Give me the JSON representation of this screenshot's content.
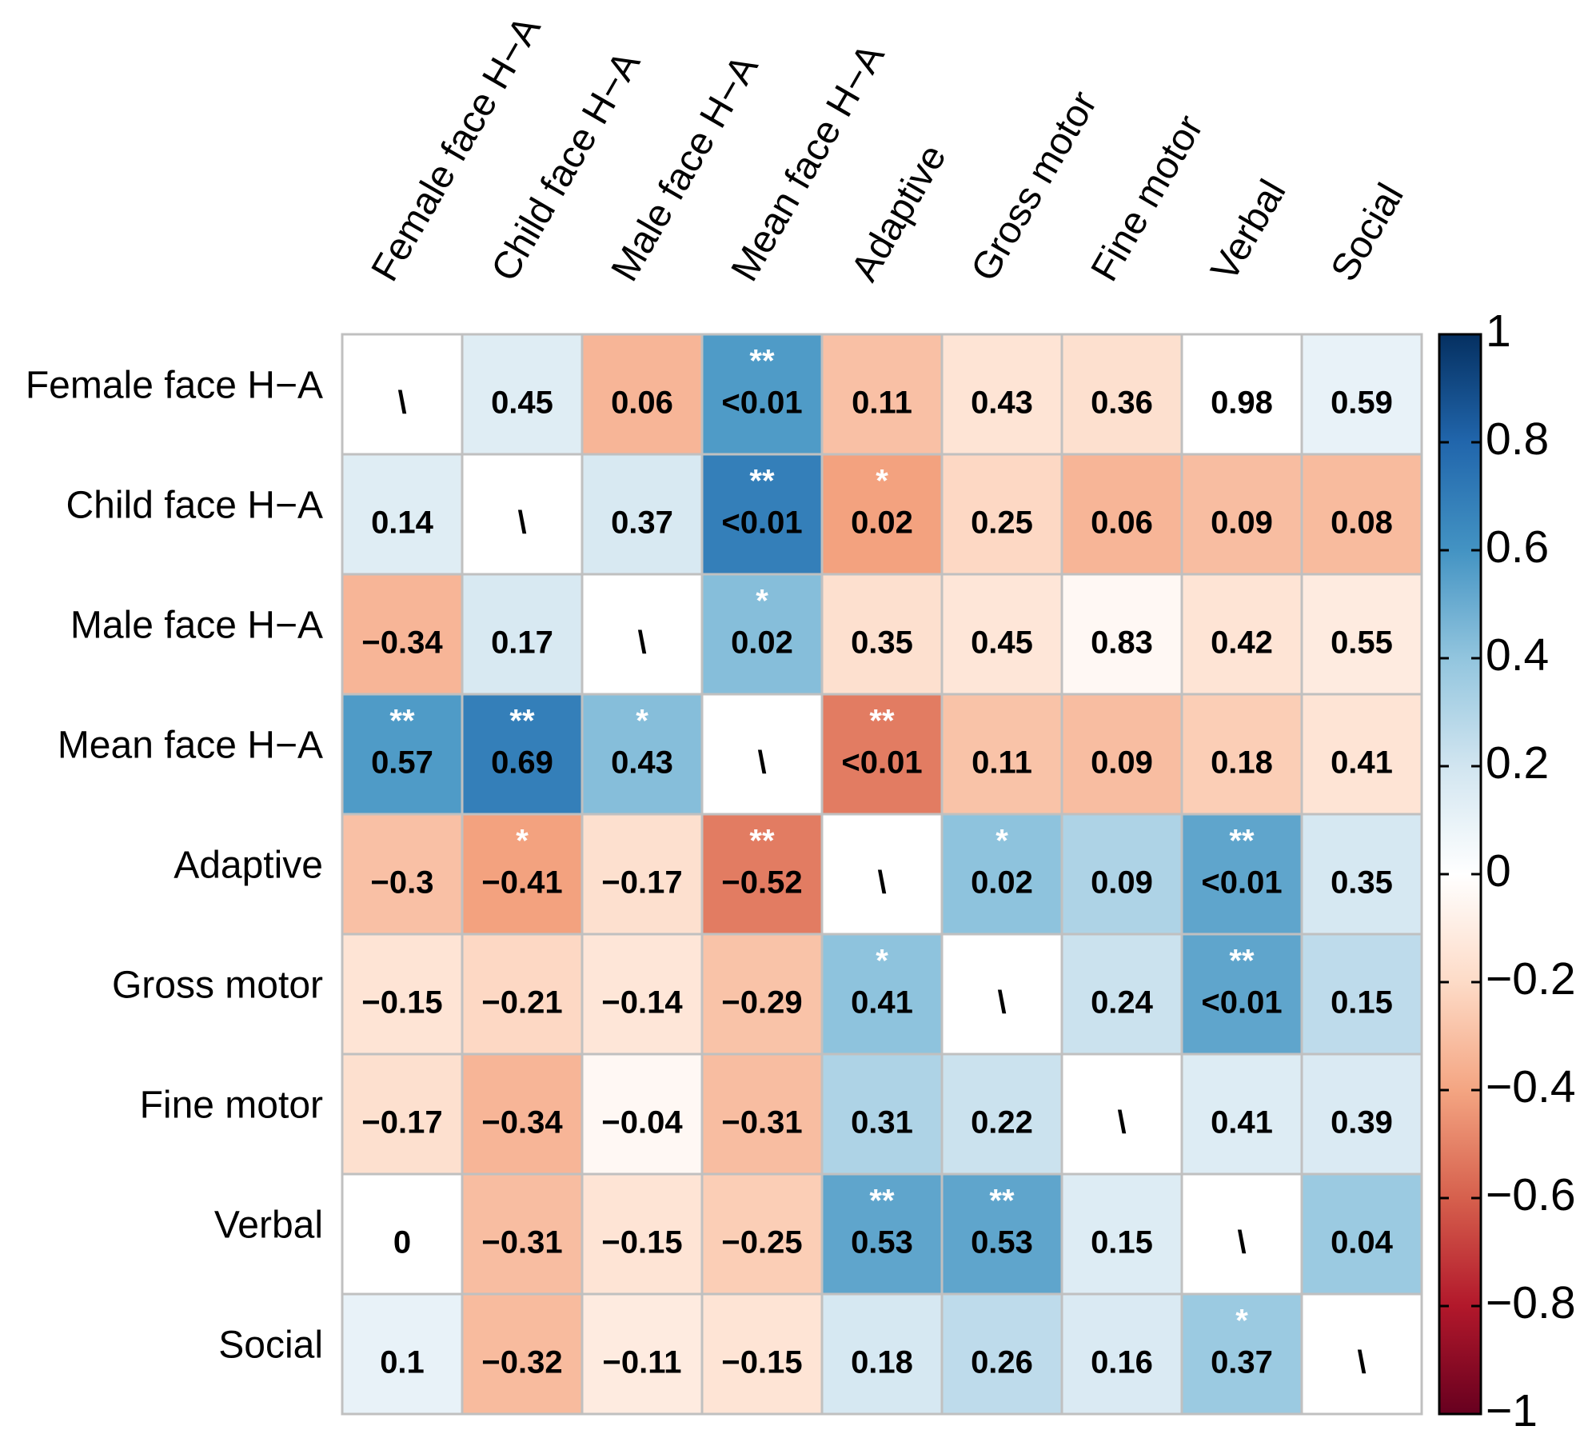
{
  "chart_data": {
    "type": "heatmap",
    "rows": [
      "Female face H−A",
      "Child face H−A",
      "Male face H−A",
      "Mean face H−A",
      "Adaptive",
      "Gross motor",
      "Fine motor",
      "Verbal",
      "Social"
    ],
    "columns": [
      "Female face H−A",
      "Child face H−A",
      "Male face H−A",
      "Mean face H−A",
      "Adaptive",
      "Gross motor",
      "Fine motor",
      "Verbal",
      "Social"
    ],
    "values": [
      [
        null,
        null,
        null,
        null,
        null,
        null,
        null,
        null,
        null
      ],
      [
        0.14,
        null,
        null,
        null,
        null,
        null,
        null,
        null,
        null
      ],
      [
        -0.34,
        0.17,
        null,
        null,
        null,
        null,
        null,
        null,
        null
      ],
      [
        0.57,
        0.69,
        0.43,
        null,
        null,
        null,
        null,
        null,
        null
      ],
      [
        -0.3,
        -0.41,
        -0.17,
        -0.52,
        null,
        null,
        null,
        null,
        null
      ],
      [
        -0.15,
        -0.21,
        -0.14,
        -0.29,
        0.41,
        null,
        null,
        null,
        null
      ],
      [
        -0.17,
        -0.34,
        -0.04,
        -0.31,
        0.31,
        0.22,
        null,
        null,
        null
      ],
      [
        0,
        -0.31,
        -0.15,
        -0.25,
        0.53,
        0.53,
        0.15,
        null,
        null
      ],
      [
        0.1,
        -0.32,
        -0.11,
        -0.15,
        0.18,
        0.26,
        0.16,
        0.37,
        null
      ]
    ],
    "value_labels": [
      [
        "\\",
        "0.45",
        "0.06",
        "<0.01",
        "0.11",
        "0.43",
        "0.36",
        "0.98",
        "0.59"
      ],
      [
        "0.14",
        "\\",
        "0.37",
        "<0.01",
        "0.02",
        "0.25",
        "0.06",
        "0.09",
        "0.08"
      ],
      [
        "−0.34",
        "0.17",
        "\\",
        "0.02",
        "0.35",
        "0.45",
        "0.83",
        "0.42",
        "0.55"
      ],
      [
        "0.57",
        "0.69",
        "0.43",
        "\\",
        "<0.01",
        "0.11",
        "0.09",
        "0.18",
        "0.41"
      ],
      [
        "−0.3",
        "−0.41",
        "−0.17",
        "−0.52",
        "\\",
        "0.02",
        "0.09",
        "<0.01",
        "0.35"
      ],
      [
        "−0.15",
        "−0.21",
        "−0.14",
        "−0.29",
        "0.41",
        "\\",
        "0.24",
        "<0.01",
        "0.15"
      ],
      [
        "−0.17",
        "−0.34",
        "−0.04",
        "−0.31",
        "0.31",
        "0.22",
        "\\",
        "0.41",
        "0.39"
      ],
      [
        "0",
        "−0.31",
        "−0.15",
        "−0.25",
        "0.53",
        "0.53",
        "0.15",
        "\\",
        "0.04"
      ],
      [
        "0.1",
        "−0.32",
        "−0.11",
        "−0.15",
        "0.18",
        "0.26",
        "0.16",
        "0.37",
        "\\"
      ]
    ],
    "significance": [
      [
        null,
        null,
        null,
        "**",
        null,
        null,
        null,
        null,
        null
      ],
      [
        null,
        null,
        null,
        "**",
        "*",
        null,
        null,
        null,
        null
      ],
      [
        null,
        null,
        null,
        "*",
        null,
        null,
        null,
        null,
        null
      ],
      [
        "**",
        "**",
        "*",
        null,
        "**",
        null,
        null,
        null,
        null
      ],
      [
        null,
        "*",
        null,
        "**",
        null,
        "*",
        null,
        "**",
        null
      ],
      [
        null,
        null,
        null,
        null,
        "*",
        null,
        null,
        "**",
        null
      ],
      [
        null,
        null,
        null,
        null,
        null,
        null,
        null,
        null,
        null
      ],
      [
        null,
        null,
        null,
        null,
        "**",
        "**",
        null,
        null,
        null
      ],
      [
        null,
        null,
        null,
        null,
        null,
        null,
        null,
        "*",
        null
      ]
    ],
    "clim": [
      -1,
      1
    ],
    "cticks": [
      {
        "value": -1,
        "label": "−1"
      },
      {
        "value": -0.8,
        "label": "−0.8"
      },
      {
        "value": -0.6,
        "label": "−0.6"
      },
      {
        "value": -0.4,
        "label": "−0.4"
      },
      {
        "value": -0.2,
        "label": "−0.2"
      },
      0,
      0.2,
      0.4,
      0.6,
      0.8,
      1
    ],
    "colormap": [
      "#67001f",
      "#b2182b",
      "#d6604d",
      "#f4a582",
      "#fddbc7",
      "#ffffff",
      "#d1e5f0",
      "#92c5de",
      "#4393c3",
      "#2166ac",
      "#053061"
    ]
  }
}
